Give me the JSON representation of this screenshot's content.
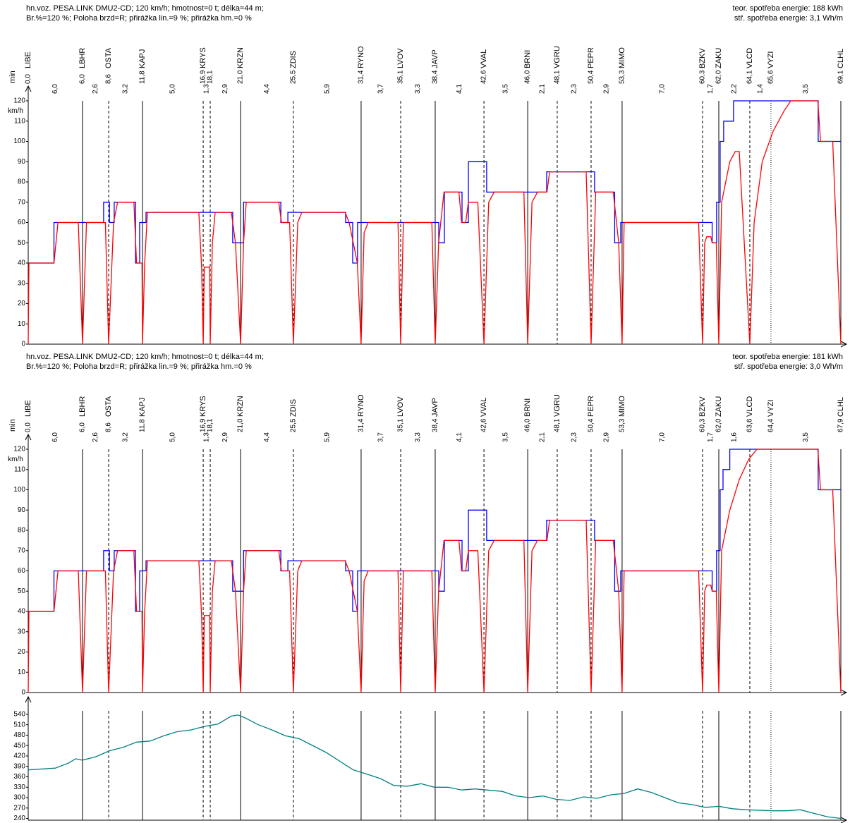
{
  "chart_data": [
    {
      "type": "line",
      "header": [
        "hn.voz. PESA.LINK DMU2-CD; 120 km/h; hmotnost=0 t; délka=44 m;",
        "Br.%=120 %; Poloha brzd=R; přirážka lin.=9 %; přirážka hm.=0 %"
      ],
      "energy": [
        "teor. spotřeba energie: 188 kWh",
        "stř. spotřeba energie: 3,1 Wh/m"
      ],
      "y_label": "km/h",
      "time_label": "min",
      "stations": [
        "LIBE",
        "LBHR",
        "OSTA",
        "KAPJ",
        "KRYS",
        null,
        "KRZN",
        "ZDIS",
        "RYNO",
        "LVOV",
        "JAVP",
        "VVAL",
        "BRNI",
        "VGRU",
        "PEPR",
        "MIMO",
        "BZKV",
        "ZAKU",
        "VLCD",
        "VYZI",
        "CLHL"
      ],
      "station_x": [
        0,
        4.01,
        5.94,
        8.44,
        12.92,
        13.44,
        15.68,
        19.58,
        24.58,
        27.5,
        30.05,
        33.65,
        36.88,
        39.06,
        41.56,
        43.85,
        49.79,
        50.99,
        53.28,
        54.84,
        60
      ],
      "line_styles": [
        "solid",
        "solid",
        "dashed",
        "solid",
        "dashed",
        "dashed",
        "solid",
        "dashed",
        "solid",
        "dashed",
        "solid",
        "dashed",
        "solid",
        "dashed",
        "dashed",
        "solid",
        "dashed",
        "solid",
        "dashed",
        "dotted",
        "solid"
      ],
      "times": [
        "0,0",
        "6,0",
        "8,6",
        "11,8",
        "16,9",
        "18,1",
        "21,0",
        "25,5",
        "31,4",
        "35,1",
        "38,4",
        "42,6",
        "46,0",
        "48,1",
        "50,4",
        "53,3",
        "60,3",
        "62,0",
        "64,1",
        "65,6",
        "69,1"
      ],
      "segments": [
        "6,0",
        "2,6",
        "3,2",
        "5,0",
        "1,3",
        "2,9",
        "4,4",
        "5,9",
        "3,7",
        "3,3",
        "4,1",
        "3,5",
        "2,1",
        "2,3",
        "2,9",
        "7,0",
        "1,7",
        "2,2",
        "1,4",
        "3,5"
      ],
      "xlim": [
        0,
        60
      ],
      "ylim": [
        0,
        120
      ],
      "yticks": [
        0,
        10,
        20,
        30,
        40,
        50,
        60,
        70,
        80,
        90,
        100,
        110,
        120
      ],
      "series": [
        {
          "color": "#0000ff",
          "x": [
            0,
            1.9,
            1.9,
            5.57,
            5.57,
            6.0,
            6.0,
            6.35,
            6.35,
            7.92,
            7.92,
            8.23,
            8.23,
            8.7,
            8.7,
            15.1,
            15.1,
            15.9,
            15.9,
            18.65,
            18.65,
            19.17,
            19.17,
            23.44,
            23.44,
            23.96,
            23.96,
            24.32,
            24.32,
            30.31,
            30.31,
            30.73,
            30.73,
            32.03,
            32.03,
            32.5,
            32.5,
            33.85,
            33.85,
            38.28,
            38.28,
            41.82,
            41.82,
            43.3,
            43.3,
            43.75,
            43.75,
            50.5,
            50.5,
            50.83,
            50.83,
            51.09,
            51.09,
            51.35,
            51.35,
            52.08,
            52.08,
            58.33,
            58.33,
            60
          ],
          "values": [
            40,
            40,
            60,
            60,
            70,
            70,
            60,
            60,
            70,
            70,
            40,
            40,
            60,
            60,
            65,
            65,
            50,
            50,
            70,
            70,
            60,
            60,
            65,
            65,
            60,
            60,
            40,
            40,
            60,
            60,
            50,
            50,
            75,
            75,
            60,
            60,
            90,
            90,
            75,
            75,
            85,
            85,
            75,
            75,
            50,
            50,
            60,
            60,
            50,
            50,
            70,
            70,
            100,
            100,
            110,
            110,
            120,
            120,
            100,
            100
          ]
        },
        {
          "color": "#ff0000",
          "x": [
            0,
            0.05,
            1.9,
            2.2,
            3.7,
            4.01,
            4.3,
            5.7,
            5.94,
            6.3,
            6.6,
            7.8,
            8.0,
            8.4,
            8.44,
            8.6,
            8.8,
            12.6,
            12.8,
            12.92,
            13.0,
            13.4,
            13.44,
            13.6,
            13.8,
            15.0,
            15.3,
            15.68,
            15.9,
            16.1,
            18.5,
            18.7,
            19.3,
            19.58,
            19.9,
            20.2,
            23.4,
            23.7,
            24.3,
            24.58,
            24.8,
            25.1,
            27.3,
            27.5,
            27.7,
            29.8,
            30.05,
            30.3,
            30.7,
            31.8,
            32.0,
            32.3,
            32.5,
            33.2,
            33.65,
            34.0,
            34.4,
            36.6,
            36.88,
            37.2,
            37.6,
            38.3,
            38.5,
            41.2,
            41.56,
            41.9,
            43.2,
            43.6,
            43.85,
            44.0,
            49.5,
            49.79,
            49.95,
            50.1,
            50.4,
            50.5,
            50.8,
            50.99,
            51.2,
            51.8,
            52.2,
            52.5,
            53.28,
            53.6,
            54.2,
            55.0,
            55.8,
            56.3,
            58.3,
            58.5,
            59.4,
            60
          ],
          "values": [
            0,
            40,
            40,
            60,
            60,
            0,
            60,
            60,
            0,
            60,
            70,
            70,
            40,
            40,
            0,
            40,
            65,
            65,
            38,
            0,
            38,
            38,
            0,
            50,
            65,
            65,
            50,
            0,
            50,
            70,
            70,
            60,
            60,
            0,
            60,
            65,
            65,
            60,
            40,
            0,
            55,
            60,
            60,
            0,
            60,
            60,
            0,
            50,
            75,
            75,
            60,
            60,
            70,
            70,
            0,
            70,
            75,
            75,
            0,
            70,
            75,
            75,
            85,
            85,
            0,
            75,
            75,
            50,
            0,
            60,
            60,
            0,
            50,
            53,
            53,
            50,
            50,
            0,
            70,
            90,
            95,
            95,
            0,
            60,
            90,
            105,
            115,
            120,
            120,
            100,
            100,
            0
          ]
        }
      ]
    },
    {
      "type": "line",
      "header": [
        "hn.voz. PESA.LINK DMU2-CD; 120 km/h; hmotnost=0 t; délka=44 m;",
        "Br.%=120 %; Poloha brzd=R; přirážka lin.=9 %; přirážka hm.=0 %"
      ],
      "energy": [
        "teor. spotřeba energie: 181 kWh",
        "stř. spotřeba energie: 3,0 Wh/m"
      ],
      "y_label": "km/h",
      "time_label": "min",
      "stations": [
        "LIBE",
        "LBHR",
        "OSTA",
        "KAPJ",
        "KRYS",
        null,
        "KRZN",
        "ZDIS",
        "RYNO",
        "LVOV",
        "JAVP",
        "VVAL",
        "BRNI",
        "VGRU",
        "PEPR",
        "MIMO",
        "BZKV",
        "ZAKU",
        "VLCD",
        "VYZI",
        "CLHL"
      ],
      "station_x": [
        0,
        4.01,
        5.94,
        8.44,
        12.92,
        13.44,
        15.68,
        19.58,
        24.58,
        27.5,
        30.05,
        33.65,
        36.88,
        39.06,
        41.56,
        43.85,
        49.79,
        50.99,
        53.28,
        54.84,
        60
      ],
      "line_styles": [
        "solid",
        "solid",
        "dashed",
        "solid",
        "dashed",
        "dashed",
        "solid",
        "dashed",
        "solid",
        "dashed",
        "solid",
        "dashed",
        "solid",
        "dashed",
        "dashed",
        "solid",
        "dashed",
        "solid",
        "dashed",
        "dotted",
        "solid"
      ],
      "times": [
        "0,0",
        "6,0",
        "8,6",
        "11,8",
        "16,9",
        "18,1",
        "21,0",
        "25,5",
        "31,4",
        "35,1",
        "38,4",
        "42,6",
        "46,0",
        "48,1",
        "50,4",
        "53,3",
        "60,3",
        "62,0",
        "63,6",
        "64,4",
        "67,9"
      ],
      "segments": [
        "6,0",
        "2,6",
        "3,2",
        "5,0",
        "1,3",
        "2,9",
        "4,4",
        "5,9",
        "3,7",
        "3,3",
        "4,1",
        "3,5",
        "2,1",
        "2,3",
        "2,9",
        "7,0",
        "1,7",
        "1,6",
        null,
        "3,5"
      ],
      "xlim": [
        0,
        60
      ],
      "ylim": [
        0,
        120
      ],
      "yticks": [
        0,
        10,
        20,
        30,
        40,
        50,
        60,
        70,
        80,
        90,
        100,
        110,
        120
      ],
      "series": [
        {
          "color": "#0000ff",
          "x": [
            0,
            1.9,
            1.9,
            5.57,
            5.57,
            6.0,
            6.0,
            6.35,
            6.35,
            7.92,
            7.92,
            8.23,
            8.23,
            8.7,
            8.7,
            15.1,
            15.1,
            15.9,
            15.9,
            18.65,
            18.65,
            19.17,
            19.17,
            23.44,
            23.44,
            23.96,
            23.96,
            24.32,
            24.32,
            30.31,
            30.31,
            30.73,
            30.73,
            32.03,
            32.03,
            32.5,
            32.5,
            33.85,
            33.85,
            38.28,
            38.28,
            41.82,
            41.82,
            43.3,
            43.3,
            43.75,
            43.75,
            50.5,
            50.5,
            50.83,
            50.83,
            51.09,
            51.09,
            51.3,
            51.3,
            51.8,
            51.8,
            58.33,
            58.33,
            60
          ],
          "values": [
            40,
            40,
            60,
            60,
            70,
            70,
            60,
            60,
            70,
            70,
            40,
            40,
            60,
            60,
            65,
            65,
            50,
            50,
            70,
            70,
            60,
            60,
            65,
            65,
            60,
            60,
            40,
            40,
            60,
            60,
            50,
            50,
            75,
            75,
            60,
            60,
            90,
            90,
            75,
            75,
            85,
            85,
            75,
            75,
            50,
            50,
            60,
            60,
            50,
            50,
            70,
            70,
            100,
            100,
            110,
            110,
            120,
            120,
            100,
            100
          ]
        },
        {
          "color": "#ff0000",
          "x": [
            0,
            0.05,
            1.9,
            2.2,
            3.7,
            4.01,
            4.3,
            5.7,
            5.94,
            6.3,
            6.6,
            7.8,
            8.0,
            8.4,
            8.44,
            8.6,
            8.8,
            12.6,
            12.8,
            12.92,
            13.0,
            13.4,
            13.44,
            13.6,
            13.8,
            15.0,
            15.3,
            15.68,
            15.9,
            16.1,
            18.5,
            18.7,
            19.3,
            19.58,
            19.9,
            20.2,
            23.4,
            23.7,
            24.3,
            24.58,
            24.8,
            25.1,
            27.3,
            27.5,
            27.7,
            29.8,
            30.05,
            30.3,
            30.7,
            31.8,
            32.0,
            32.3,
            32.5,
            33.2,
            33.65,
            34.0,
            34.4,
            36.6,
            36.88,
            37.2,
            37.6,
            38.3,
            38.5,
            41.2,
            41.56,
            41.9,
            43.2,
            43.6,
            43.85,
            44.0,
            49.5,
            49.79,
            49.95,
            50.1,
            50.4,
            50.5,
            50.8,
            50.99,
            51.2,
            51.8,
            52.5,
            53.2,
            53.8,
            58.3,
            58.5,
            59.4,
            60
          ],
          "values": [
            0,
            40,
            40,
            60,
            60,
            0,
            60,
            60,
            0,
            60,
            70,
            70,
            40,
            40,
            0,
            40,
            65,
            65,
            38,
            0,
            38,
            38,
            0,
            50,
            65,
            65,
            50,
            0,
            50,
            70,
            70,
            60,
            60,
            0,
            60,
            65,
            65,
            60,
            40,
            0,
            55,
            60,
            60,
            0,
            60,
            60,
            0,
            50,
            75,
            75,
            60,
            60,
            70,
            70,
            0,
            70,
            75,
            75,
            0,
            70,
            75,
            75,
            85,
            85,
            0,
            75,
            75,
            50,
            0,
            60,
            60,
            0,
            50,
            53,
            53,
            50,
            50,
            0,
            70,
            90,
            105,
            115,
            120,
            120,
            100,
            100,
            0
          ]
        }
      ]
    },
    {
      "type": "line",
      "xlim": [
        0,
        60
      ],
      "ylim": [
        235,
        550
      ],
      "yticks": [
        240,
        270,
        300,
        330,
        360,
        390,
        420,
        450,
        480,
        510,
        540
      ],
      "series": [
        {
          "color": "#008080",
          "x": [
            0,
            2,
            3,
            3.5,
            4,
            5,
            6,
            7,
            8,
            9,
            10,
            11,
            12,
            13,
            14,
            15,
            15.5,
            16,
            17,
            18,
            19,
            20,
            22,
            24,
            25,
            26,
            27,
            28,
            29,
            30,
            31,
            32,
            33,
            35,
            36,
            37,
            38,
            39,
            40,
            41,
            42,
            43,
            44,
            45,
            46,
            47,
            48,
            49,
            50,
            51,
            52,
            53,
            55,
            56,
            57,
            58,
            59,
            60
          ],
          "values": [
            380,
            385,
            400,
            412,
            408,
            418,
            435,
            445,
            460,
            463,
            478,
            490,
            495,
            505,
            512,
            535,
            538,
            530,
            510,
            495,
            478,
            470,
            430,
            380,
            368,
            355,
            335,
            333,
            340,
            330,
            330,
            322,
            325,
            318,
            305,
            300,
            305,
            295,
            292,
            302,
            298,
            308,
            312,
            325,
            315,
            300,
            285,
            280,
            272,
            275,
            268,
            265,
            262,
            262,
            265,
            255,
            245,
            240
          ]
        }
      ]
    }
  ]
}
